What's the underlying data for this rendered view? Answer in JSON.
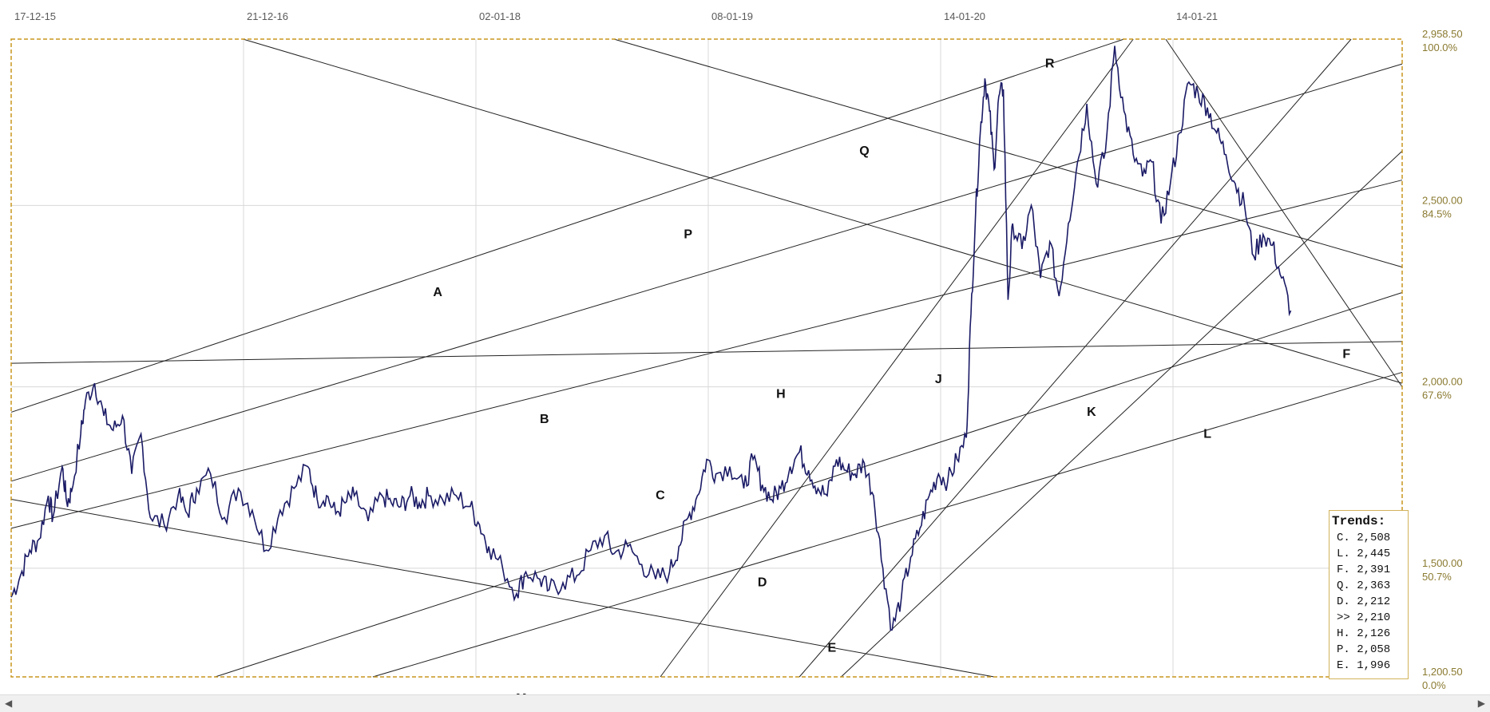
{
  "chart_data": {
    "type": "line",
    "x_tick_labels": [
      "17-12-15",
      "21-12-16",
      "02-01-18",
      "08-01-19",
      "14-01-20",
      "14-01-21"
    ],
    "y_ticks": [
      {
        "value": 2958.5,
        "label": "2,958.50",
        "pct": "100.0%"
      },
      {
        "value": 2500,
        "label": "2,500.00",
        "pct": "84.5%"
      },
      {
        "value": 2000,
        "label": "2,000.00",
        "pct": "67.6%"
      },
      {
        "value": 1500,
        "label": "1,500.00",
        "pct": "50.7%"
      },
      {
        "value": 1200.5,
        "label": "1,200.50",
        "pct": "0.0%"
      }
    ],
    "ylim": [
      1200.5,
      2958.5
    ],
    "grid": true,
    "series_color": "#1a1a66",
    "accent_color": "#c8961e",
    "price_series": [
      [
        0,
        1420
      ],
      [
        0.02,
        1480
      ],
      [
        0.04,
        1550
      ],
      [
        0.06,
        1580
      ],
      [
        0.08,
        1700
      ],
      [
        0.09,
        1640
      ],
      [
        0.11,
        1780
      ],
      [
        0.12,
        1680
      ],
      [
        0.13,
        1710
      ],
      [
        0.15,
        1870
      ],
      [
        0.16,
        1960
      ],
      [
        0.18,
        2010
      ],
      [
        0.2,
        1920
      ],
      [
        0.22,
        1880
      ],
      [
        0.24,
        1920
      ],
      [
        0.26,
        1760
      ],
      [
        0.28,
        1870
      ],
      [
        0.3,
        1640
      ],
      [
        0.33,
        1620
      ],
      [
        0.36,
        1700
      ],
      [
        0.38,
        1650
      ],
      [
        0.4,
        1720
      ],
      [
        0.43,
        1760
      ],
      [
        0.46,
        1640
      ],
      [
        0.49,
        1720
      ],
      [
        0.52,
        1660
      ],
      [
        0.55,
        1550
      ],
      [
        0.58,
        1660
      ],
      [
        0.61,
        1720
      ],
      [
        0.64,
        1780
      ],
      [
        0.66,
        1690
      ],
      [
        0.68,
        1700
      ],
      [
        0.7,
        1650
      ],
      [
        0.72,
        1680
      ],
      [
        0.74,
        1700
      ],
      [
        0.77,
        1630
      ],
      [
        0.8,
        1700
      ],
      [
        0.82,
        1680
      ],
      [
        0.84,
        1670
      ],
      [
        0.86,
        1700
      ],
      [
        0.88,
        1680
      ],
      [
        0.9,
        1700
      ],
      [
        0.93,
        1690
      ],
      [
        0.96,
        1700
      ],
      [
        0.99,
        1670
      ],
      [
        1.01,
        1620
      ],
      [
        1.03,
        1560
      ],
      [
        1.06,
        1500
      ],
      [
        1.09,
        1430
      ],
      [
        1.11,
        1490
      ],
      [
        1.14,
        1470
      ],
      [
        1.16,
        1440
      ],
      [
        1.19,
        1460
      ],
      [
        1.22,
        1480
      ],
      [
        1.25,
        1550
      ],
      [
        1.28,
        1590
      ],
      [
        1.3,
        1540
      ],
      [
        1.33,
        1560
      ],
      [
        1.36,
        1510
      ],
      [
        1.39,
        1470
      ],
      [
        1.42,
        1490
      ],
      [
        1.44,
        1560
      ],
      [
        1.46,
        1640
      ],
      [
        1.48,
        1700
      ],
      [
        1.5,
        1800
      ],
      [
        1.52,
        1760
      ],
      [
        1.55,
        1780
      ],
      [
        1.58,
        1720
      ],
      [
        1.6,
        1800
      ],
      [
        1.62,
        1730
      ],
      [
        1.64,
        1690
      ],
      [
        1.66,
        1720
      ],
      [
        1.68,
        1780
      ],
      [
        1.7,
        1820
      ],
      [
        1.72,
        1770
      ],
      [
        1.74,
        1720
      ],
      [
        1.76,
        1700
      ],
      [
        1.78,
        1800
      ],
      [
        1.8,
        1770
      ],
      [
        1.82,
        1760
      ],
      [
        1.84,
        1790
      ],
      [
        1.86,
        1700
      ],
      [
        1.88,
        1500
      ],
      [
        1.9,
        1330
      ],
      [
        1.92,
        1420
      ],
      [
        1.94,
        1530
      ],
      [
        1.96,
        1610
      ],
      [
        1.98,
        1700
      ],
      [
        2.0,
        1760
      ],
      [
        2.02,
        1740
      ],
      [
        2.04,
        1800
      ],
      [
        2.06,
        1860
      ],
      [
        2.07,
        2200
      ],
      [
        2.08,
        2480
      ],
      [
        2.09,
        2700
      ],
      [
        2.1,
        2850
      ],
      [
        2.11,
        2760
      ],
      [
        2.12,
        2600
      ],
      [
        2.13,
        2800
      ],
      [
        2.14,
        2820
      ],
      [
        2.15,
        2240
      ],
      [
        2.16,
        2450
      ],
      [
        2.18,
        2380
      ],
      [
        2.2,
        2500
      ],
      [
        2.22,
        2300
      ],
      [
        2.24,
        2400
      ],
      [
        2.26,
        2250
      ],
      [
        2.28,
        2450
      ],
      [
        2.3,
        2620
      ],
      [
        2.32,
        2780
      ],
      [
        2.34,
        2560
      ],
      [
        2.36,
        2650
      ],
      [
        2.38,
        2940
      ],
      [
        2.4,
        2760
      ],
      [
        2.42,
        2640
      ],
      [
        2.44,
        2580
      ],
      [
        2.46,
        2620
      ],
      [
        2.48,
        2450
      ],
      [
        2.5,
        2560
      ],
      [
        2.52,
        2700
      ],
      [
        2.54,
        2840
      ],
      [
        2.56,
        2810
      ],
      [
        2.58,
        2770
      ],
      [
        2.6,
        2700
      ],
      [
        2.62,
        2640
      ],
      [
        2.64,
        2560
      ],
      [
        2.66,
        2500
      ],
      [
        2.68,
        2360
      ],
      [
        2.7,
        2420
      ],
      [
        2.72,
        2390
      ],
      [
        2.74,
        2300
      ],
      [
        2.76,
        2210
      ]
    ],
    "trendlines": [
      {
        "label": "A",
        "start": [
          0,
          1930
        ],
        "end": [
          2.4,
          2958.5
        ]
      },
      {
        "label": "B",
        "start": [
          0,
          1740
        ],
        "end": [
          3.0,
          2890
        ]
      },
      {
        "label": "C",
        "start": [
          0,
          1610
        ],
        "end": [
          3.0,
          2570
        ]
      },
      {
        "label": "D",
        "start": [
          0.44,
          1200.5
        ],
        "end": [
          3.0,
          2260
        ]
      },
      {
        "label": "E",
        "start": [
          0.78,
          1200.5
        ],
        "end": [
          3.0,
          2040
        ]
      },
      {
        "label": "F",
        "start": [
          2.49,
          2958.5
        ],
        "end": [
          3.0,
          2000
        ]
      },
      {
        "label": "H",
        "start": [
          0,
          2065
        ],
        "end": [
          3.0,
          2125
        ]
      },
      {
        "label": "J",
        "start": [
          1.4,
          1200.5
        ],
        "end": [
          2.42,
          2958.5
        ]
      },
      {
        "label": "K",
        "start": [
          1.7,
          1200.5
        ],
        "end": [
          2.89,
          2958.5
        ]
      },
      {
        "label": "L",
        "start": [
          1.79,
          1200.5
        ],
        "end": [
          3.0,
          2650
        ]
      },
      {
        "label": "M",
        "start": [
          0,
          1690
        ],
        "end": [
          2.12,
          1200.5
        ]
      },
      {
        "label": "P",
        "start": [
          0.5,
          2958.5
        ],
        "end": [
          3.0,
          2010
        ]
      },
      {
        "label": "Q",
        "start": [
          1.3,
          2958.5
        ],
        "end": [
          3.0,
          2330
        ]
      },
      {
        "label": "R",
        "start": [
          2.12,
          2958.5
        ],
        "end": [
          2.12,
          2958.5
        ]
      }
    ],
    "trends_table": {
      "title": "Trends:",
      "rows": [
        "C. 2,508",
        "L. 2,445",
        "F. 2,391",
        "Q. 2,363",
        "D. 2,212",
        ">> 2,210",
        "H. 2,126",
        "P. 2,058",
        "E. 1,996"
      ]
    }
  }
}
